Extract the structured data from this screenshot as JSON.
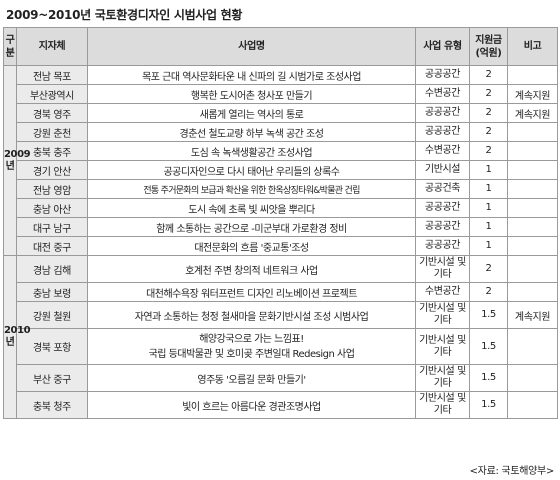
{
  "title": "2009~2010년 국토환경디자인 시범사업 현황",
  "headers": {
    "division": "구분",
    "region": "지자체",
    "project": "사업명",
    "type": "사업 유형",
    "amount": "지원금 (억원)",
    "note": "비고"
  },
  "groups": [
    {
      "year": "2009년",
      "rows": [
        {
          "region": "전남 목포",
          "project": "목포 근대 역사문화타운 내 신파의 길 시범가로 조성사업",
          "type": "공공공간",
          "amount": "2",
          "note": ""
        },
        {
          "region": "부산광역시",
          "project": "행복한 도시어촌 청사포 만들기",
          "type": "수변공간",
          "amount": "2",
          "note": "계속지원"
        },
        {
          "region": "경북 영주",
          "project": "새롭게 열리는 역사의 통로",
          "type": "공공공간",
          "amount": "2",
          "note": "계속지원"
        },
        {
          "region": "강원 춘천",
          "project": "경춘선 철도교량 하부 녹색 공간 조성",
          "type": "공공공간",
          "amount": "2",
          "note": ""
        },
        {
          "region": "충북 충주",
          "project": "도심 속 녹색생활공간 조성사업",
          "type": "수변공간",
          "amount": "2",
          "note": ""
        },
        {
          "region": "경기 안산",
          "project": "공공디자인으로 다시 태어난 우리들의 상록수",
          "type": "기반시설",
          "amount": "1",
          "note": ""
        },
        {
          "region": "전남 영암",
          "project": "전통 주거문화의 보급과 확산을 위한 한옥상징타워&박물관 건립",
          "type": "공공건축",
          "amount": "1",
          "note": ""
        },
        {
          "region": "충남 아산",
          "project": "도시 속에 초록 빛 씨앗을 뿌리다",
          "type": "공공공간",
          "amount": "1",
          "note": ""
        },
        {
          "region": "대구 남구",
          "project": "함께 소통하는 공간으로 -미군부대 가로환경 정비",
          "type": "공공공간",
          "amount": "1",
          "note": ""
        },
        {
          "region": "대전 중구",
          "project": "대전문화의 흐름 '중교통'조성",
          "type": "공공공간",
          "amount": "1",
          "note": ""
        }
      ]
    },
    {
      "year": "2010년",
      "rows": [
        {
          "region": "경남 김해",
          "project": "호계천 주변 창의적 네트워크 사업",
          "type": "기반시설 및 기타",
          "amount": "2",
          "note": ""
        },
        {
          "region": "충남 보령",
          "project": "대천해수욕장 워터프런트 디자인 리노베이션 프로젝트",
          "type": "수변공간",
          "amount": "2",
          "note": ""
        },
        {
          "region": "강원 철원",
          "project": "자연과 소통하는 청정 철새마을 문화기반시설 조성 시범사업",
          "type": "기반시설 및 기타",
          "amount": "1.5",
          "note": "계속지원"
        },
        {
          "region": "경북 포항",
          "project": "해양강국으로 가는 느낌표! 국립 등대박물관 및 호미곶 주변일대 Redesign 사업",
          "project_line1": "해양강국으로 가는 느낌표!",
          "project_line2": "국립 등대박물관 및 호미곶 주변일대 Redesign 사업",
          "type": "기반시설 및 기타",
          "amount": "1.5",
          "note": ""
        },
        {
          "region": "부산 중구",
          "project": "영주동 '오름길 문화 만들기'",
          "type": "기반시설 및 기타",
          "amount": "1.5",
          "note": ""
        },
        {
          "region": "충북 청주",
          "project": "빛이 흐르는 아름다운 경관조명사업",
          "type": "기반시설 및 기타",
          "amount": "1.5",
          "note": ""
        }
      ]
    }
  ],
  "source": "<자료: 국토해양부>"
}
